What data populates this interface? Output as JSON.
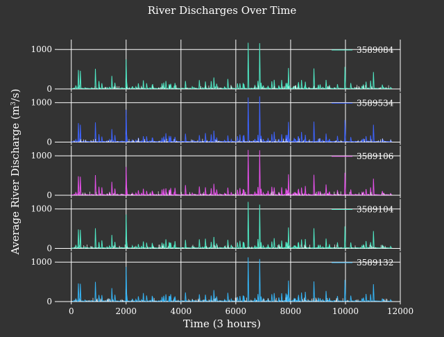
{
  "chart_data": {
    "type": "line",
    "title": "River Discharges Over Time",
    "xlabel": "Time (3 hours)",
    "ylabel": "Average River Discharge (m",
    "ylabel_sup": "3",
    "ylabel_end": "/s)",
    "xlim": [
      -500,
      12000
    ],
    "ylim": [
      0,
      1250
    ],
    "xticks": [
      0,
      2000,
      4000,
      6000,
      8000,
      10000,
      12000
    ],
    "xtick_labels": [
      "0",
      "2000",
      "4000",
      "6000",
      "8000",
      "10000",
      "12000"
    ],
    "yticks": [
      0,
      1000
    ],
    "ytick_labels": [
      "0",
      "1000"
    ],
    "grid": true,
    "legend_position": "top-right",
    "x_range_of_series": [
      0,
      11700
    ],
    "series": [
      {
        "name": "3589084",
        "color": "#4fe8c4",
        "peaks": [
          [
            260,
            480
          ],
          [
            330,
            460
          ],
          [
            880,
            510
          ],
          [
            1480,
            330
          ],
          [
            2000,
            750
          ],
          [
            5200,
            290
          ],
          [
            6450,
            1170
          ],
          [
            6870,
            1160
          ],
          [
            7920,
            530
          ],
          [
            8850,
            520
          ],
          [
            9980,
            560
          ],
          [
            11020,
            430
          ]
        ]
      },
      {
        "name": "3589534",
        "color": "#3d63ff",
        "peaks": [
          [
            260,
            480
          ],
          [
            330,
            440
          ],
          [
            880,
            500
          ],
          [
            1480,
            330
          ],
          [
            2000,
            820
          ],
          [
            5200,
            290
          ],
          [
            6450,
            1130
          ],
          [
            6870,
            1160
          ],
          [
            7920,
            510
          ],
          [
            8850,
            520
          ],
          [
            9980,
            560
          ],
          [
            11020,
            440
          ]
        ]
      },
      {
        "name": "3589106",
        "color": "#e34fe8",
        "peaks": [
          [
            260,
            480
          ],
          [
            330,
            470
          ],
          [
            880,
            510
          ],
          [
            1480,
            340
          ],
          [
            2000,
            720
          ],
          [
            5200,
            290
          ],
          [
            6450,
            1150
          ],
          [
            6870,
            1140
          ],
          [
            7920,
            530
          ],
          [
            8850,
            520
          ],
          [
            9980,
            570
          ],
          [
            11020,
            420
          ]
        ]
      },
      {
        "name": "3589104",
        "color": "#4fe8c4",
        "peaks": [
          [
            260,
            480
          ],
          [
            330,
            470
          ],
          [
            880,
            510
          ],
          [
            1480,
            340
          ],
          [
            2000,
            860
          ],
          [
            5200,
            290
          ],
          [
            6450,
            1180
          ],
          [
            6870,
            1110
          ],
          [
            7920,
            530
          ],
          [
            8850,
            510
          ],
          [
            9980,
            560
          ],
          [
            11020,
            440
          ]
        ]
      },
      {
        "name": "3589132",
        "color": "#35b4f5",
        "peaks": [
          [
            260,
            460
          ],
          [
            330,
            450
          ],
          [
            880,
            500
          ],
          [
            1480,
            340
          ],
          [
            2000,
            880
          ],
          [
            5200,
            290
          ],
          [
            6450,
            1120
          ],
          [
            6870,
            1080
          ],
          [
            7920,
            530
          ],
          [
            8850,
            510
          ],
          [
            9980,
            550
          ],
          [
            11020,
            440
          ]
        ]
      }
    ]
  }
}
